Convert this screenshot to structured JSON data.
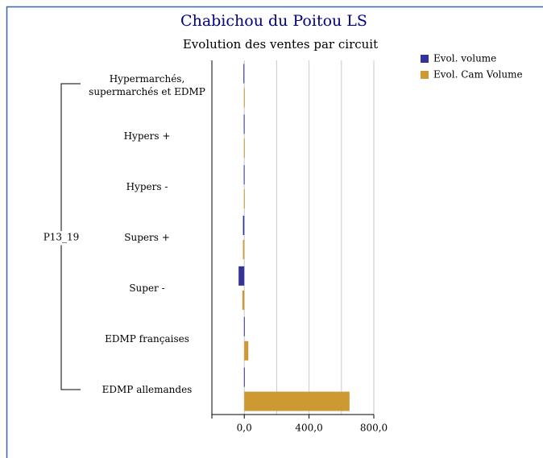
{
  "chart_data": {
    "type": "barh",
    "title": "Chabichou du Poitou LS",
    "subtitle": "Evolution des ventes par circuit",
    "group_label": "P13_19",
    "categories": [
      "Hypermarchés, supermarchés et EDMP",
      "Hypers +",
      "Hypers -",
      "Supers +",
      "Super -",
      "EDMP françaises",
      "EDMP allemandes"
    ],
    "series": [
      {
        "name": "Evol. volume",
        "color": "#333399",
        "values": [
          -5,
          -3,
          -3,
          -8,
          -35,
          -2,
          -2
        ]
      },
      {
        "name": "Evol. Cam Volume",
        "color": "#cc9933",
        "values": [
          -2,
          -2,
          -2,
          -8,
          -12,
          25,
          650
        ]
      }
    ],
    "xlim": [
      -200,
      800
    ],
    "xticks": [
      {
        "value": 0,
        "label": "0,0"
      },
      {
        "value": 400,
        "label": "400,0"
      },
      {
        "value": 800,
        "label": "800,0"
      }
    ],
    "xgrid_minor": [
      200,
      600
    ],
    "grid": true,
    "legend": "top-right"
  }
}
